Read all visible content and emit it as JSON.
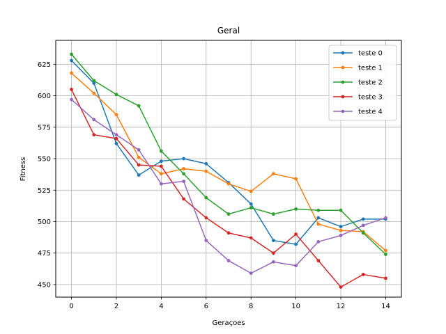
{
  "chart_data": {
    "type": "line",
    "title": "Geral",
    "xlabel": "Geraçoes",
    "ylabel": "Fitness",
    "x": [
      0,
      1,
      2,
      3,
      4,
      5,
      6,
      7,
      8,
      9,
      10,
      11,
      12,
      13,
      14
    ],
    "xlim": [
      -0.7,
      14.7
    ],
    "ylim": [
      440,
      644
    ],
    "xticks": [
      0,
      2,
      4,
      6,
      8,
      10,
      12,
      14
    ],
    "yticks": [
      450,
      475,
      500,
      525,
      550,
      575,
      600,
      625
    ],
    "grid": true,
    "legend_position": "top-right",
    "series": [
      {
        "name": "teste 0",
        "color": "#1f77b4",
        "values": [
          628,
          610,
          562,
          537,
          548,
          550,
          546,
          531,
          514,
          485,
          482,
          503,
          496,
          502,
          502
        ]
      },
      {
        "name": "teste 1",
        "color": "#ff7f0e",
        "values": [
          618,
          602,
          585,
          551,
          538,
          542,
          540,
          530,
          524,
          538,
          534,
          498,
          493,
          492,
          477
        ]
      },
      {
        "name": "teste 2",
        "color": "#2ca02c",
        "values": [
          633,
          612,
          601,
          592,
          556,
          538,
          519,
          506,
          511,
          506,
          510,
          509,
          509,
          491,
          474
        ]
      },
      {
        "name": "teste 3",
        "color": "#d62728",
        "values": [
          605,
          569,
          566,
          545,
          544,
          518,
          503,
          491,
          487,
          475,
          490,
          469,
          448,
          458,
          455
        ]
      },
      {
        "name": "teste 4",
        "color": "#9467bd",
        "values": [
          597,
          581,
          569,
          557,
          530,
          532,
          485,
          469,
          459,
          468,
          465,
          484,
          489,
          497,
          503
        ]
      }
    ]
  }
}
